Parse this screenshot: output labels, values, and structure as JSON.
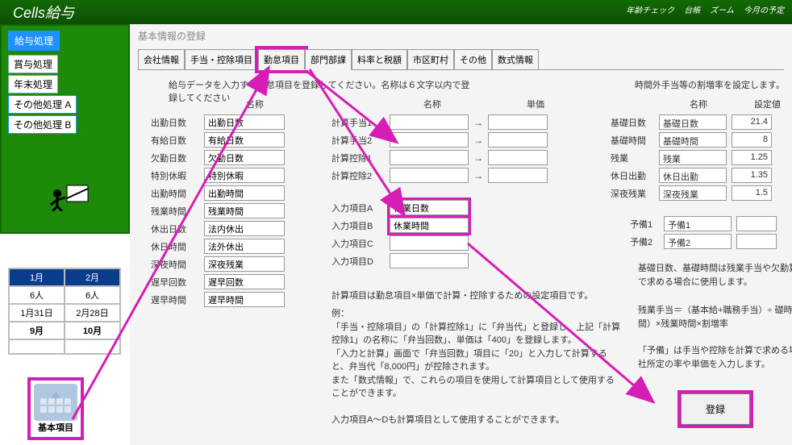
{
  "app_title": "Cells給与",
  "top_right": [
    "年齢チェック",
    "台帳",
    "ズーム",
    "今月の予定"
  ],
  "sidebar": {
    "header": "給与処理",
    "items": [
      "賞与処理",
      "年末処理",
      "その他処理 A",
      "その他処理 B"
    ]
  },
  "calendar": {
    "months": [
      "1月",
      "2月"
    ],
    "rows": [
      [
        "6人",
        "6人"
      ],
      [
        "1月31日",
        "2月28日"
      ],
      [
        "9月",
        "10月"
      ],
      [
        "",
        ""
      ]
    ]
  },
  "basic_items_label": "基本項目",
  "main": {
    "title": "基本情報の登録",
    "tabs": [
      "会社情報",
      "手当・控除項目",
      "勤怠項目",
      "部門部課",
      "料率と税額",
      "市区町村",
      "その他",
      "数式情報"
    ],
    "active_tab": 2,
    "instruction": "給与データを入力する勤怠項目を登録してください。名称は６文字以内で登録してください",
    "col1_header": "名称",
    "col2_headers": [
      "名称",
      "単価"
    ],
    "attendance": {
      "labels": [
        "出勤日数",
        "有給日数",
        "欠勤日数",
        "特別休暇",
        "出勤時間",
        "残業時間",
        "休出日数",
        "休日時間",
        "深夜時間",
        "遅早回数",
        "遅早時間"
      ],
      "values": [
        "出勤日数",
        "有給日数",
        "欠勤日数",
        "特別休暇",
        "出勤時間",
        "残業時間",
        "法内休出",
        "法外休出",
        "深夜残業",
        "遅早回数",
        "遅早時間"
      ]
    },
    "calc_items": {
      "rows": [
        {
          "label": "計算手当1",
          "name": "",
          "unit": ""
        },
        {
          "label": "計算手当2",
          "name": "",
          "unit": ""
        },
        {
          "label": "計算控除1",
          "name": "",
          "unit": ""
        },
        {
          "label": "計算控除2",
          "name": "",
          "unit": ""
        }
      ],
      "arrow": "→"
    },
    "input_items": {
      "rows": [
        {
          "label": "入力項目A",
          "value": "休業日数"
        },
        {
          "label": "入力項目B",
          "value": "休業時間"
        },
        {
          "label": "入力項目C",
          "value": ""
        },
        {
          "label": "入力項目D",
          "value": ""
        }
      ]
    },
    "rate_title": "時間外手当等の割増率を設定します。",
    "rate_headers": [
      "名称",
      "設定値"
    ],
    "rates": [
      {
        "label": "基礎日数",
        "name": "基礎日数",
        "value": "21.4"
      },
      {
        "label": "基礎時間",
        "name": "基礎時間",
        "value": "8"
      },
      {
        "label": "残業",
        "name": "残業",
        "value": "1.25"
      },
      {
        "label": "休日出勤",
        "name": "休日出勤",
        "value": "1.35"
      },
      {
        "label": "深夜残業",
        "name": "深夜残業",
        "value": "1.5"
      }
    ],
    "yobi": [
      {
        "label": "予備1",
        "name": "予備1"
      },
      {
        "label": "予備2",
        "name": "予備2"
      }
    ],
    "explain_header": "計算項目は勤怠項目×単価で計算・控除するための設定項目です。",
    "explain_body": "例：\n「手当・控除項目」の「計算控除1」に「弁当代」と登録し、上記「計算控除1」の名称に「弁当回数」、単価は「400」を登録します。\n「入力と計算」画面で「弁当回数」項目に「20」と入力して計算すると、弁当代「8,000円」が控除されます。\nまた「数式情報」で、これらの項目を使用して計算項目として使用することができます。\n\n入力項目A～Dも計算項目として使用することができます。",
    "explain_side1": "基礎日数、基礎時間は残業手当や欠勤算で求める場合に使用します。",
    "explain_side2": "残業手当＝（基本給+職務手当）÷ 礎時間）×残業時間×割増率",
    "explain_side3": "「予備」は手当や控除を計算で求める場社所定の率や単価を入力します。",
    "register": "登録"
  },
  "colors": {
    "highlight": "#d61eb6"
  }
}
